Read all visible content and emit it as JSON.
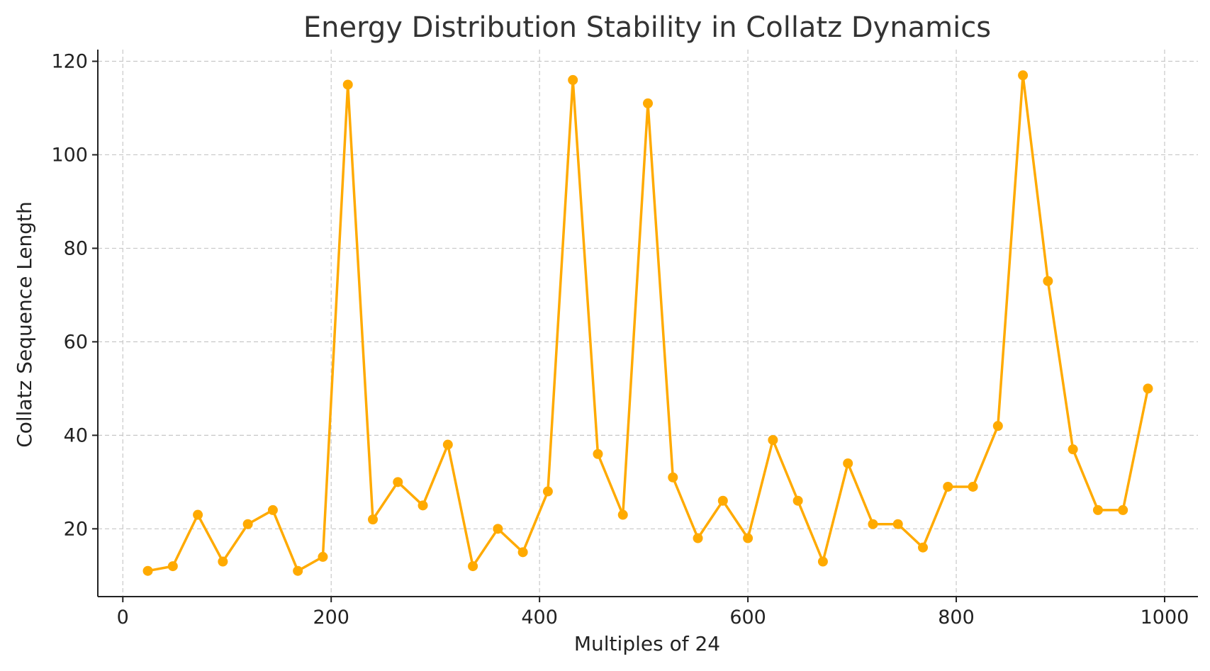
{
  "chart_data": {
    "type": "line",
    "title": "Energy Distribution Stability in Collatz Dynamics",
    "xlabel": "Multiples of 24",
    "ylabel": "Collatz Sequence Length",
    "xlim": [
      -24,
      1032
    ],
    "ylim": [
      5.5,
      122.5
    ],
    "xticks": [
      0,
      200,
      400,
      600,
      800,
      1000
    ],
    "yticks": [
      20,
      40,
      60,
      80,
      100,
      120
    ],
    "grid": true,
    "series_color": "#FFAA00",
    "x": [
      24,
      48,
      72,
      96,
      120,
      144,
      168,
      192,
      216,
      240,
      264,
      288,
      312,
      336,
      360,
      384,
      408,
      432,
      456,
      480,
      504,
      528,
      552,
      576,
      600,
      624,
      648,
      672,
      696,
      720,
      744,
      768,
      792,
      816,
      840,
      864,
      888,
      912,
      936,
      960,
      984
    ],
    "y": [
      11,
      12,
      23,
      13,
      21,
      24,
      11,
      14,
      115,
      22,
      30,
      25,
      38,
      12,
      20,
      15,
      28,
      116,
      36,
      23,
      111,
      31,
      18,
      26,
      18,
      39,
      26,
      13,
      34,
      21,
      21,
      16,
      29,
      29,
      42,
      117,
      73,
      37,
      24,
      24,
      50
    ]
  }
}
